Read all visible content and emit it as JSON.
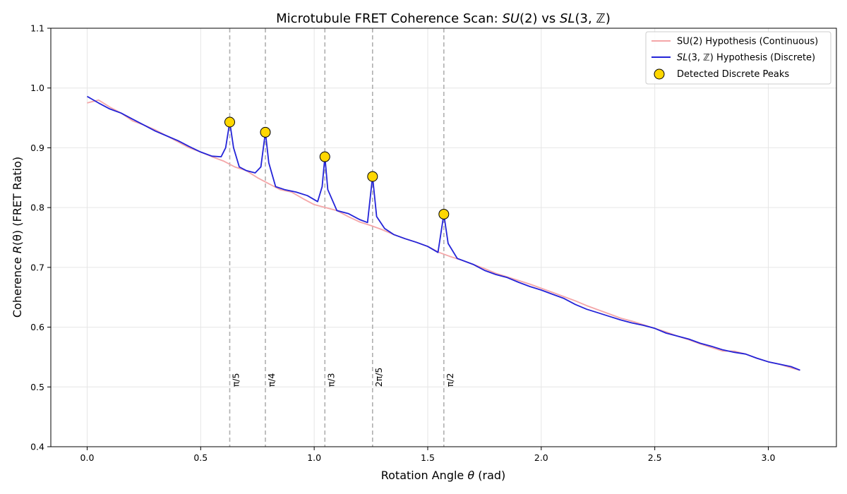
{
  "chart_data": {
    "type": "line",
    "title_prefix": "Microtubule FRET Coherence Scan: ",
    "title_math_a": "SU",
    "title_math_a_arg": "(2)",
    "title_vs": " vs ",
    "title_math_b": "SL",
    "title_math_b_arg": "(3, ℤ)",
    "xlabel_prefix": "Rotation Angle ",
    "xlabel_symbol": "θ",
    "xlabel_suffix": " (rad)",
    "ylabel_prefix": "Coherence ",
    "ylabel_symbol": "R",
    "ylabel_arg": "(θ)",
    "ylabel_suffix": " (FRET Ratio)",
    "xlim": [
      -0.16,
      3.3
    ],
    "ylim": [
      0.4,
      1.1
    ],
    "xticks": [
      0.0,
      0.5,
      1.0,
      1.5,
      2.0,
      2.5,
      3.0
    ],
    "xtick_labels": [
      "0.0",
      "0.5",
      "1.0",
      "1.5",
      "2.0",
      "2.5",
      "3.0"
    ],
    "yticks": [
      0.4,
      0.5,
      0.6,
      0.7,
      0.8,
      0.9,
      1.0,
      1.1
    ],
    "ytick_labels": [
      "0.4",
      "0.5",
      "0.6",
      "0.7",
      "0.8",
      "0.9",
      "1.0",
      "1.1"
    ],
    "grid": true,
    "legend_location": "top-right",
    "colors": {
      "su2": "#f4a6a8",
      "sl3": "#2323d8",
      "peak_fill": "#ffd700",
      "peak_edge": "#000000",
      "vline": "#b0b0b0",
      "grid": "#e6e6e6"
    },
    "series": [
      {
        "name": "SU(2) Hypothesis (Continuous)",
        "legend_text": "SU(2) Hypothesis (Continuous)",
        "x": [
          0.0,
          0.05,
          0.1,
          0.15,
          0.2,
          0.25,
          0.3,
          0.35,
          0.4,
          0.45,
          0.5,
          0.55,
          0.6,
          0.65,
          0.7,
          0.75,
          0.8,
          0.85,
          0.9,
          0.95,
          1.0,
          1.05,
          1.1,
          1.15,
          1.2,
          1.25,
          1.3,
          1.35,
          1.4,
          1.45,
          1.5,
          1.55,
          1.6,
          1.65,
          1.7,
          1.75,
          1.8,
          1.85,
          1.9,
          1.95,
          2.0,
          2.05,
          2.1,
          2.15,
          2.2,
          2.25,
          2.3,
          2.35,
          2.4,
          2.45,
          2.5,
          2.55,
          2.6,
          2.65,
          2.7,
          2.75,
          2.8,
          2.85,
          2.9,
          2.95,
          3.0,
          3.05,
          3.1,
          3.14
        ],
        "values": [
          0.975,
          0.98,
          0.968,
          0.958,
          0.945,
          0.938,
          0.93,
          0.92,
          0.91,
          0.9,
          0.893,
          0.885,
          0.878,
          0.868,
          0.862,
          0.85,
          0.84,
          0.83,
          0.826,
          0.815,
          0.805,
          0.8,
          0.795,
          0.785,
          0.776,
          0.77,
          0.763,
          0.755,
          0.748,
          0.742,
          0.735,
          0.725,
          0.718,
          0.712,
          0.705,
          0.698,
          0.69,
          0.684,
          0.678,
          0.672,
          0.665,
          0.658,
          0.651,
          0.644,
          0.636,
          0.629,
          0.622,
          0.615,
          0.61,
          0.604,
          0.598,
          0.592,
          0.585,
          0.579,
          0.572,
          0.566,
          0.56,
          0.56,
          0.555,
          0.548,
          0.542,
          0.538,
          0.532,
          0.528
        ]
      },
      {
        "name": "SL(3,Z) Hypothesis (Discrete)",
        "legend_prefix": "SL",
        "legend_arg": "(3, ℤ)",
        "legend_suffix": " Hypothesis (Discrete)",
        "x": [
          0.0,
          0.05,
          0.1,
          0.15,
          0.2,
          0.25,
          0.3,
          0.35,
          0.4,
          0.45,
          0.5,
          0.55,
          0.59,
          0.61,
          0.628,
          0.645,
          0.67,
          0.7,
          0.74,
          0.765,
          0.785,
          0.8,
          0.83,
          0.87,
          0.92,
          0.97,
          1.015,
          1.035,
          1.047,
          1.06,
          1.1,
          1.15,
          1.2,
          1.235,
          1.257,
          1.275,
          1.31,
          1.35,
          1.4,
          1.45,
          1.5,
          1.545,
          1.571,
          1.59,
          1.63,
          1.7,
          1.75,
          1.8,
          1.85,
          1.9,
          1.95,
          2.0,
          2.05,
          2.1,
          2.15,
          2.2,
          2.25,
          2.3,
          2.35,
          2.4,
          2.45,
          2.5,
          2.55,
          2.6,
          2.65,
          2.7,
          2.75,
          2.8,
          2.85,
          2.9,
          2.95,
          3.0,
          3.05,
          3.1,
          3.14
        ],
        "values": [
          0.986,
          0.975,
          0.965,
          0.958,
          0.948,
          0.938,
          0.928,
          0.92,
          0.912,
          0.902,
          0.893,
          0.886,
          0.885,
          0.9,
          0.943,
          0.9,
          0.868,
          0.862,
          0.858,
          0.868,
          0.926,
          0.875,
          0.835,
          0.83,
          0.826,
          0.82,
          0.81,
          0.835,
          0.885,
          0.83,
          0.795,
          0.79,
          0.78,
          0.775,
          0.852,
          0.785,
          0.765,
          0.755,
          0.748,
          0.742,
          0.735,
          0.725,
          0.789,
          0.74,
          0.715,
          0.705,
          0.695,
          0.688,
          0.683,
          0.675,
          0.668,
          0.662,
          0.655,
          0.648,
          0.638,
          0.63,
          0.624,
          0.618,
          0.612,
          0.607,
          0.603,
          0.598,
          0.59,
          0.585,
          0.58,
          0.573,
          0.568,
          0.562,
          0.558,
          0.555,
          0.548,
          0.542,
          0.538,
          0.534,
          0.528
        ]
      }
    ],
    "peaks": {
      "name": "Detected Discrete Peaks",
      "legend_text": "Detected Discrete Peaks",
      "x": [
        0.628,
        0.785,
        1.047,
        1.257,
        1.571
      ],
      "values": [
        0.943,
        0.926,
        0.885,
        0.852,
        0.789
      ]
    },
    "vlines": [
      {
        "x": 0.628,
        "label": "π/5"
      },
      {
        "x": 0.785,
        "label": "π/4"
      },
      {
        "x": 1.047,
        "label": "π/3"
      },
      {
        "x": 1.257,
        "label": "2π/5"
      },
      {
        "x": 1.571,
        "label": "π/2"
      }
    ],
    "vline_label_y": 0.5
  }
}
